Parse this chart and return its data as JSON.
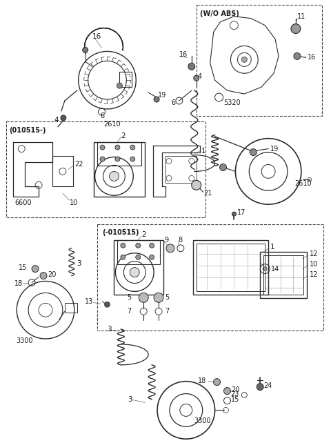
{
  "bg_color": "#ffffff",
  "line_color": "#2a2a2a",
  "text_color": "#1a1a1a",
  "fig_width": 4.8,
  "fig_height": 6.42,
  "dpi": 100
}
